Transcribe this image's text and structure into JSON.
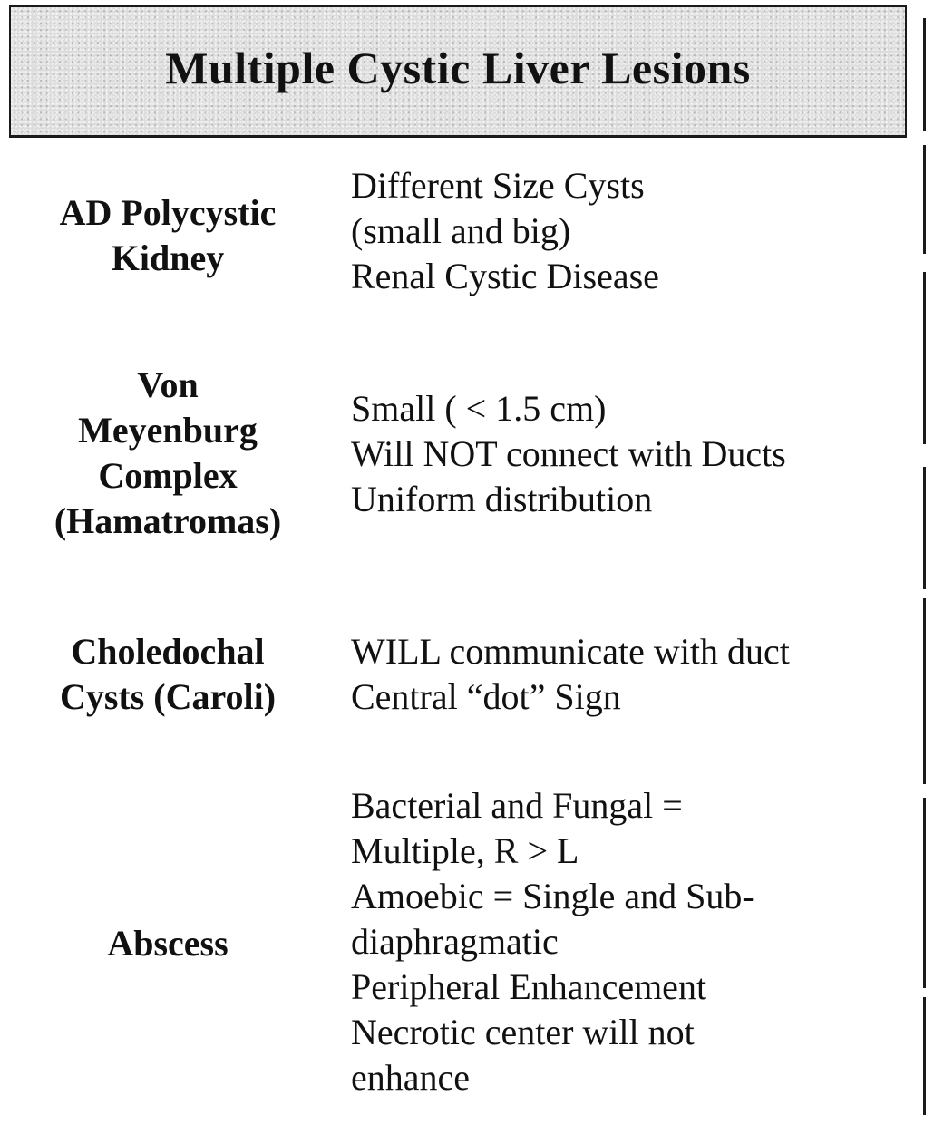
{
  "title": "Multiple Cystic Liver Lesions",
  "entries": [
    {
      "term_lines": [
        "AD Polycystic",
        "Kidney"
      ],
      "desc_lines": [
        "Different Size Cysts",
        "(small and big)",
        "Renal Cystic Disease"
      ]
    },
    {
      "term_lines": [
        "Von",
        "Meyenburg",
        "Complex",
        "(Hamatromas)"
      ],
      "desc_lines": [
        "Small ( < 1.5 cm)",
        "Will NOT connect with Ducts",
        "Uniform distribution"
      ]
    },
    {
      "term_lines": [
        "Choledochal",
        "Cysts (Caroli)"
      ],
      "desc_lines": [
        "WILL communicate with duct",
        "Central “dot” Sign"
      ]
    },
    {
      "term_lines": [
        "Abscess"
      ],
      "desc_lines": [
        "Bacterial and Fungal =",
        "Multiple, R > L",
        "Amoebic = Single and Sub-",
        "diaphragmatic",
        "Peripheral  Enhancement",
        "Necrotic center will not",
        "enhance"
      ]
    }
  ]
}
